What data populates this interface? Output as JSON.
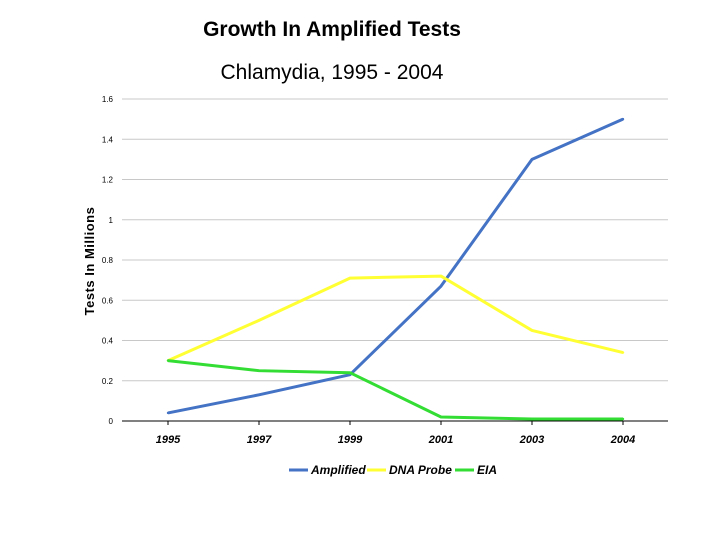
{
  "chart_data": {
    "type": "line",
    "title": "Growth In Amplified Tests",
    "subtitle": "Chlamydia, 1995 - 2004",
    "ylabel": "Tests In Millions",
    "xlabel": "",
    "categories": [
      "1995",
      "1997",
      "1999",
      "2001",
      "2003",
      "2004"
    ],
    "y_ticks": [
      "0",
      "0.2",
      "0.4",
      "0.6",
      "0.8",
      "1",
      "1.2",
      "1.4",
      "1.6"
    ],
    "ylim": [
      0,
      1.6
    ],
    "grid": true,
    "legend_position": "bottom",
    "series": [
      {
        "name": "Amplified",
        "color": "#4472c4",
        "values": [
          0.04,
          0.13,
          0.23,
          0.67,
          1.3,
          1.5
        ]
      },
      {
        "name": "DNA Probe",
        "color": "#ffff33",
        "values": [
          0.3,
          0.5,
          0.71,
          0.72,
          0.45,
          0.34
        ]
      },
      {
        "name": "EIA",
        "color": "#33dd33",
        "values": [
          0.3,
          0.25,
          0.24,
          0.02,
          0.01,
          0.01
        ]
      }
    ]
  }
}
